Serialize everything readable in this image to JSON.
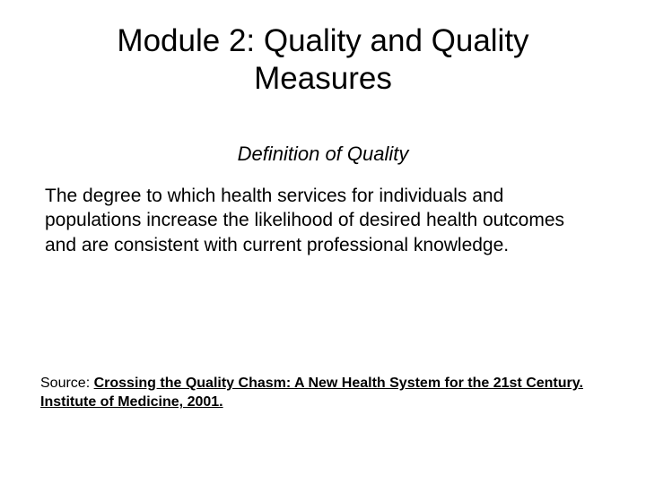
{
  "title": "Module 2:  Quality and Quality Measures",
  "subtitle": "Definition of Quality",
  "body": "The degree to which health services for individuals and populations increase the likelihood of desired health outcomes and are consistent with current professional knowledge.",
  "source_label": "Source: ",
  "source_text": "Crossing the Quality Chasm: A New Health System for the 21st Century. Institute of Medicine, 2001.",
  "colors": {
    "background": "#ffffff",
    "text": "#000000"
  },
  "typography": {
    "title_fontsize": 35,
    "subtitle_fontsize": 22,
    "body_fontsize": 21,
    "source_fontsize": 16,
    "font_family": "Arial"
  }
}
